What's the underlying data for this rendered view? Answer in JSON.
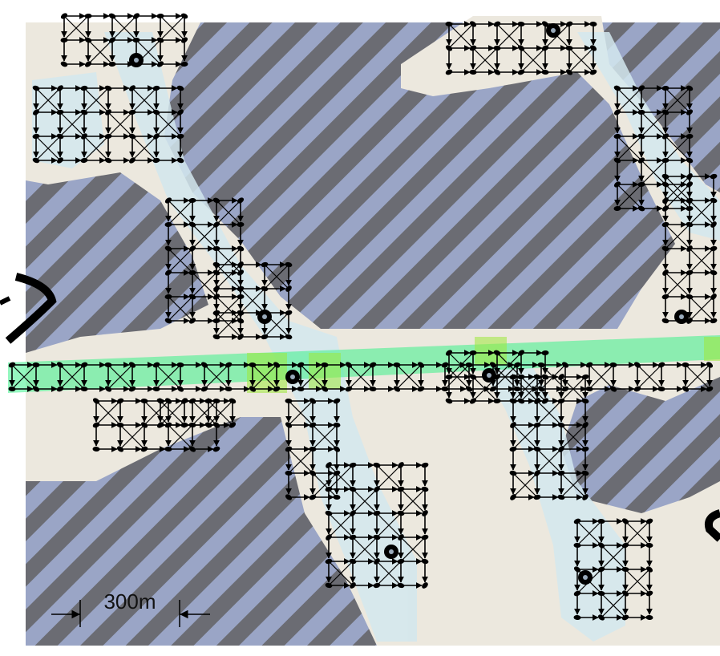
{
  "scale_bar": {
    "label": "300m"
  }
}
